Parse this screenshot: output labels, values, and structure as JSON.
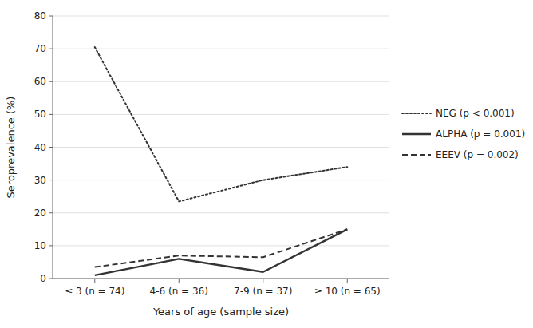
{
  "chart_data": {
    "type": "line",
    "xlabel": "Years of age (sample size)",
    "ylabel": "Seroprevalence (%)",
    "categories": [
      "≤ 3 (n = 74)",
      "4-6 (n = 36)",
      "7-9 (n = 37)",
      "≥ 10 (n = 65)"
    ],
    "series": [
      {
        "name": "NEG (p < 0.001)",
        "color": "#333333",
        "line_style": "dotted",
        "values": [
          70.5,
          23.5,
          30.0,
          34.0
        ]
      },
      {
        "name": "ALPHA (p = 0.001)",
        "color": "#333333",
        "line_style": "solid",
        "values": [
          1.0,
          6.0,
          2.0,
          15.0
        ]
      },
      {
        "name": "EEEV (p = 0.002)",
        "color": "#333333",
        "line_style": "dashed",
        "values": [
          3.5,
          7.0,
          6.5,
          15.0
        ]
      }
    ],
    "ylim": [
      0,
      80
    ],
    "yticks": [
      0,
      10,
      20,
      30,
      40,
      50,
      60,
      70,
      80
    ],
    "grid": true,
    "legend": "right"
  }
}
